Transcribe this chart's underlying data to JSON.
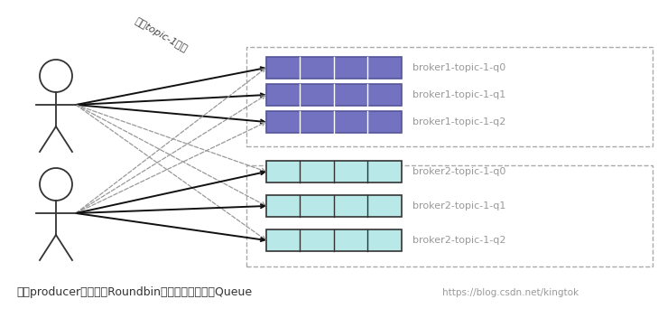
{
  "bg_color": "#ffffff",
  "broker1_color": "#7272c0",
  "broker1_border": "#555599",
  "broker2_color": "#b8e8e8",
  "broker2_border": "#333333",
  "cell_edge_color": "#ffffff",
  "cell_edge_color2": "#333333",
  "dashed_box_color": "#aaaaaa",
  "arrow_color_solid": "#111111",
  "arrow_color_dashed": "#999999",
  "label_color": "#999999",
  "text_bottom": "每个producer默认采用Roundbin方式轪训发送每个Queue",
  "watermark": "https://blog.csdn.net/kingtok",
  "label_annotation": "发逑topic-1消息",
  "broker1_labels": [
    "broker1-topic-1-q0",
    "broker1-topic-1-q1",
    "broker1-topic-1-q2"
  ],
  "broker2_labels": [
    "broker2-topic-1-q0",
    "broker2-topic-1-q1",
    "broker2-topic-1-q2"
  ],
  "num_cells": 4,
  "figsize": [
    7.29,
    3.52
  ],
  "dpi": 100
}
